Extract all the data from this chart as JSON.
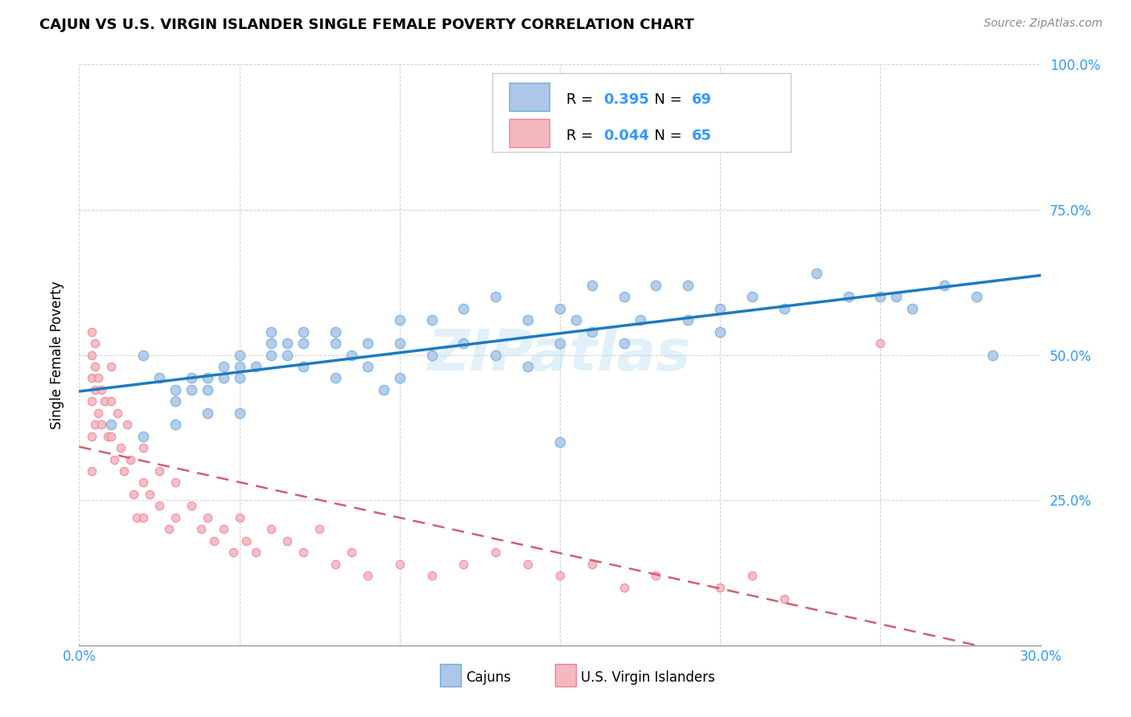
{
  "title": "CAJUN VS U.S. VIRGIN ISLANDER SINGLE FEMALE POVERTY CORRELATION CHART",
  "source": "Source: ZipAtlas.com",
  "ylabel": "Single Female Poverty",
  "x_min": 0.0,
  "x_max": 0.3,
  "y_min": 0.0,
  "y_max": 1.0,
  "x_ticks": [
    0.0,
    0.05,
    0.1,
    0.15,
    0.2,
    0.25,
    0.3
  ],
  "x_tick_labels": [
    "0.0%",
    "",
    "",
    "",
    "",
    "",
    "30.0%"
  ],
  "y_ticks": [
    0.0,
    0.25,
    0.5,
    0.75,
    1.0
  ],
  "y_tick_labels": [
    "",
    "25.0%",
    "50.0%",
    "75.0%",
    "100.0%"
  ],
  "cajun_color_edge": "#6baed6",
  "cajun_color_fill": "#aec7e8",
  "virgin_color_edge": "#f08090",
  "virgin_color_fill": "#f4b8c0",
  "line_cajun": "#1f7abf",
  "line_virgin": "#d06070",
  "R_cajun": 0.395,
  "N_cajun": 69,
  "R_virgin": 0.044,
  "N_virgin": 65,
  "watermark": "ZIPatlas",
  "cajun_x": [
    0.01,
    0.02,
    0.02,
    0.025,
    0.03,
    0.03,
    0.03,
    0.035,
    0.035,
    0.04,
    0.04,
    0.04,
    0.045,
    0.045,
    0.05,
    0.05,
    0.05,
    0.05,
    0.055,
    0.06,
    0.06,
    0.06,
    0.065,
    0.065,
    0.07,
    0.07,
    0.07,
    0.08,
    0.08,
    0.08,
    0.085,
    0.09,
    0.09,
    0.095,
    0.1,
    0.1,
    0.1,
    0.11,
    0.11,
    0.12,
    0.12,
    0.13,
    0.13,
    0.14,
    0.14,
    0.15,
    0.15,
    0.155,
    0.16,
    0.16,
    0.17,
    0.17,
    0.175,
    0.18,
    0.19,
    0.19,
    0.2,
    0.2,
    0.21,
    0.22,
    0.23,
    0.24,
    0.25,
    0.255,
    0.26,
    0.27,
    0.28,
    0.285,
    0.15
  ],
  "cajun_y": [
    0.38,
    0.5,
    0.36,
    0.46,
    0.44,
    0.42,
    0.38,
    0.46,
    0.44,
    0.46,
    0.44,
    0.4,
    0.48,
    0.46,
    0.5,
    0.48,
    0.46,
    0.4,
    0.48,
    0.54,
    0.52,
    0.5,
    0.52,
    0.5,
    0.54,
    0.52,
    0.48,
    0.54,
    0.52,
    0.46,
    0.5,
    0.52,
    0.48,
    0.44,
    0.56,
    0.52,
    0.46,
    0.56,
    0.5,
    0.58,
    0.52,
    0.6,
    0.5,
    0.56,
    0.48,
    0.58,
    0.52,
    0.56,
    0.62,
    0.54,
    0.6,
    0.52,
    0.56,
    0.62,
    0.56,
    0.62,
    0.58,
    0.54,
    0.6,
    0.58,
    0.64,
    0.6,
    0.6,
    0.6,
    0.58,
    0.62,
    0.6,
    0.5,
    0.35
  ],
  "virgin_x": [
    0.004,
    0.004,
    0.004,
    0.004,
    0.004,
    0.004,
    0.005,
    0.005,
    0.005,
    0.005,
    0.006,
    0.006,
    0.007,
    0.007,
    0.008,
    0.009,
    0.01,
    0.01,
    0.01,
    0.011,
    0.012,
    0.013,
    0.014,
    0.015,
    0.016,
    0.017,
    0.018,
    0.02,
    0.02,
    0.02,
    0.022,
    0.025,
    0.025,
    0.028,
    0.03,
    0.03,
    0.035,
    0.038,
    0.04,
    0.042,
    0.045,
    0.048,
    0.05,
    0.052,
    0.055,
    0.06,
    0.065,
    0.07,
    0.075,
    0.08,
    0.085,
    0.09,
    0.1,
    0.11,
    0.12,
    0.13,
    0.14,
    0.15,
    0.16,
    0.17,
    0.18,
    0.2,
    0.21,
    0.22,
    0.25
  ],
  "virgin_y": [
    0.54,
    0.5,
    0.46,
    0.42,
    0.36,
    0.3,
    0.52,
    0.48,
    0.44,
    0.38,
    0.46,
    0.4,
    0.44,
    0.38,
    0.42,
    0.36,
    0.48,
    0.42,
    0.36,
    0.32,
    0.4,
    0.34,
    0.3,
    0.38,
    0.32,
    0.26,
    0.22,
    0.34,
    0.28,
    0.22,
    0.26,
    0.3,
    0.24,
    0.2,
    0.28,
    0.22,
    0.24,
    0.2,
    0.22,
    0.18,
    0.2,
    0.16,
    0.22,
    0.18,
    0.16,
    0.2,
    0.18,
    0.16,
    0.2,
    0.14,
    0.16,
    0.12,
    0.14,
    0.12,
    0.14,
    0.16,
    0.14,
    0.12,
    0.14,
    0.1,
    0.12,
    0.1,
    0.12,
    0.08,
    0.52
  ]
}
